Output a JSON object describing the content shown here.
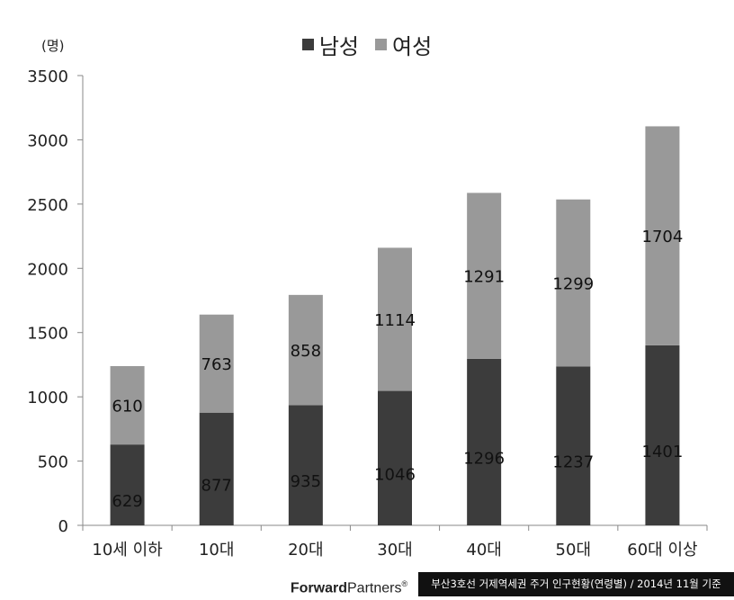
{
  "legend": {
    "male": "남성",
    "female": "여성"
  },
  "unit": "(명)",
  "footer": {
    "brand_bold": "Forward",
    "brand_rest": "Partners",
    "brand_mark": "®",
    "note": "부산3호선 거제역세권 주거 인구현황(연령별) / 2014년 11월 기준"
  },
  "colors": {
    "male": "#3c3c3c",
    "female": "#999999"
  },
  "chart_data": {
    "type": "bar",
    "stacked": true,
    "categories": [
      "10세 이하",
      "10대",
      "20대",
      "30대",
      "40대",
      "50대",
      "60대 이상"
    ],
    "series": [
      {
        "name": "남성",
        "values": [
          629,
          877,
          935,
          1046,
          1296,
          1237,
          1401
        ]
      },
      {
        "name": "여성",
        "values": [
          610,
          763,
          858,
          1114,
          1291,
          1299,
          1704
        ]
      }
    ],
    "ylim": [
      0,
      3500
    ],
    "yticks": [
      0,
      500,
      1000,
      1500,
      2000,
      2500,
      3000,
      3500
    ],
    "ylabel": "(명)",
    "legend_position": "top-center",
    "grid": false
  }
}
